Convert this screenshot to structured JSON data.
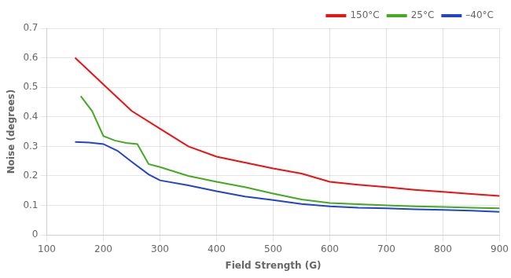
{
  "chart_data": {
    "type": "line",
    "xlabel": "Field Strength (G)",
    "ylabel": "Noise (degrees)",
    "xlim": [
      100,
      900
    ],
    "ylim": [
      0,
      0.7
    ],
    "xticks": [
      100,
      200,
      300,
      400,
      500,
      600,
      700,
      800,
      900
    ],
    "yticks": [
      0,
      0.1,
      0.2,
      0.3,
      0.4,
      0.5,
      0.6,
      0.7
    ],
    "series": [
      {
        "name": "150°C",
        "color": "#ee1111",
        "x": [
          150,
          200,
          250,
          300,
          350,
          400,
          450,
          500,
          550,
          600,
          650,
          700,
          750,
          800,
          850,
          900
        ],
        "values": [
          0.6,
          0.51,
          0.42,
          0.36,
          0.3,
          0.265,
          0.245,
          0.225,
          0.208,
          0.18,
          0.17,
          0.162,
          0.153,
          0.146,
          0.139,
          0.132
        ]
      },
      {
        "name": "25°C",
        "color": "#44aa22",
        "x": [
          160,
          180,
          200,
          220,
          240,
          260,
          280,
          300,
          350,
          400,
          450,
          500,
          550,
          600,
          650,
          700,
          750,
          800,
          850,
          900
        ],
        "values": [
          0.47,
          0.42,
          0.335,
          0.32,
          0.312,
          0.308,
          0.24,
          0.23,
          0.2,
          0.18,
          0.162,
          0.14,
          0.12,
          0.108,
          0.104,
          0.1,
          0.097,
          0.095,
          0.092,
          0.09
        ]
      },
      {
        "name": "–40°C",
        "color": "#2244cc",
        "x": [
          150,
          175,
          200,
          225,
          250,
          280,
          300,
          350,
          400,
          450,
          500,
          550,
          600,
          650,
          700,
          750,
          800,
          850,
          900
        ],
        "values": [
          0.315,
          0.313,
          0.308,
          0.285,
          0.248,
          0.205,
          0.185,
          0.168,
          0.148,
          0.13,
          0.118,
          0.105,
          0.097,
          0.092,
          0.09,
          0.087,
          0.085,
          0.082,
          0.078
        ]
      }
    ],
    "grid": true,
    "legend": "upper right"
  }
}
